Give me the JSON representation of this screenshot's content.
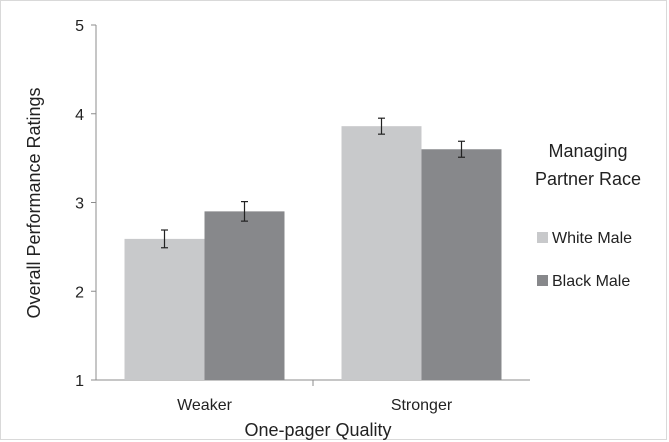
{
  "chart_data": {
    "type": "bar",
    "xlabel": "One-pager Quality",
    "ylabel": "Overall Performance Ratings",
    "categories": [
      "Weaker",
      "Stronger"
    ],
    "ylim": [
      1,
      5
    ],
    "yticks": [
      "1",
      "2",
      "3",
      "4",
      "5"
    ],
    "legend": {
      "title_lines": [
        "Managing",
        "Partner Race"
      ],
      "placement": "right"
    },
    "series": [
      {
        "name": "White Male",
        "color": "#c8c9cb",
        "values": [
          2.59,
          3.86
        ],
        "errors": [
          0.1,
          0.09
        ]
      },
      {
        "name": "Black Male",
        "color": "#87888b",
        "values": [
          2.9,
          3.6
        ],
        "errors": [
          0.11,
          0.09
        ]
      }
    ]
  }
}
